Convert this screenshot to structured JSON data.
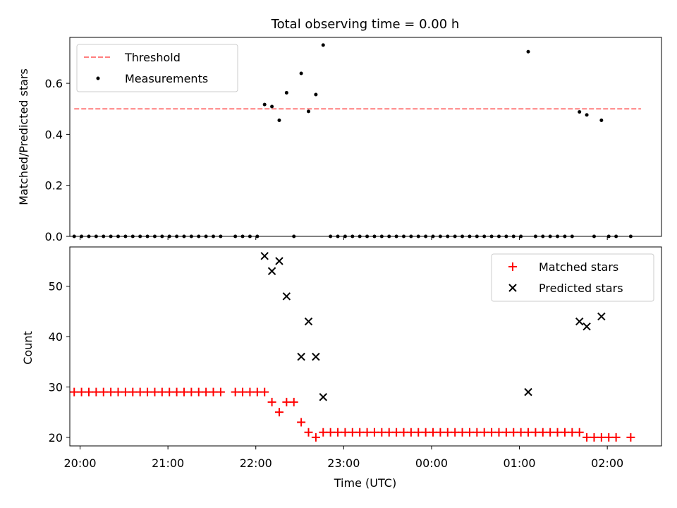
{
  "chart_data": [
    {
      "type": "scatter",
      "title": "Total observing time = 0.00 h",
      "xlabel": "",
      "ylabel": "Matched/Predicted stars",
      "xlim": [
        "19:53",
        "02:37"
      ],
      "ylim": [
        0,
        0.78
      ],
      "yticks": [
        0.0,
        0.2,
        0.4,
        0.6
      ],
      "ytick_labels": [
        "0.0",
        "0.2",
        "0.4",
        "0.6"
      ],
      "legend": "upper-left",
      "series": [
        {
          "name": "Threshold",
          "kind": "dashed-line",
          "color": "#ff7f7f",
          "x": [
            "19:56",
            "02:23"
          ],
          "values": [
            0.5,
            0.5
          ]
        },
        {
          "name": "Measurements",
          "kind": "points",
          "color": "#000000",
          "x": [
            "19:56",
            "20:01",
            "20:06",
            "20:11",
            "20:16",
            "20:21",
            "20:26",
            "20:31",
            "20:36",
            "20:41",
            "20:46",
            "20:51",
            "20:56",
            "21:01",
            "21:06",
            "21:11",
            "21:16",
            "21:21",
            "21:26",
            "21:31",
            "21:36",
            "21:46",
            "21:51",
            "21:56",
            "22:01",
            "22:06",
            "22:11",
            "22:16",
            "22:21",
            "22:26",
            "22:31",
            "22:36",
            "22:41",
            "22:46",
            "22:51",
            "22:56",
            "23:01",
            "23:06",
            "23:11",
            "23:16",
            "23:21",
            "23:26",
            "23:31",
            "23:36",
            "23:41",
            "23:46",
            "23:51",
            "23:56",
            "00:01",
            "00:06",
            "00:11",
            "00:16",
            "00:21",
            "00:26",
            "00:31",
            "00:36",
            "00:41",
            "00:46",
            "00:51",
            "00:56",
            "01:01",
            "01:06",
            "01:11",
            "01:16",
            "01:21",
            "01:26",
            "01:31",
            "01:36",
            "01:41",
            "01:46",
            "01:51",
            "01:56",
            "02:01",
            "02:06",
            "02:16"
          ],
          "values": [
            0,
            0,
            0,
            0,
            0,
            0,
            0,
            0,
            0,
            0,
            0,
            0,
            0,
            0,
            0,
            0,
            0,
            0,
            0,
            0,
            0,
            0,
            0,
            0,
            0,
            0.517,
            0.509,
            0.455,
            0.563,
            0,
            0.639,
            0.49,
            0.556,
            0.75,
            0,
            0,
            0,
            0,
            0,
            0,
            0,
            0,
            0,
            0,
            0,
            0,
            0,
            0,
            0,
            0,
            0,
            0,
            0,
            0,
            0,
            0,
            0,
            0,
            0,
            0,
            0,
            0.724,
            0,
            0,
            0,
            0,
            0,
            0,
            0.488,
            0.476,
            0,
            0.455,
            0,
            0,
            0
          ]
        }
      ]
    },
    {
      "type": "scatter",
      "title": "",
      "xlabel": "Time (UTC)",
      "ylabel": "Count",
      "xlim": [
        "19:53",
        "02:37"
      ],
      "ylim": [
        18.3,
        57.8
      ],
      "xticks": [
        "20:00",
        "21:00",
        "22:00",
        "23:00",
        "00:00",
        "01:00",
        "02:00"
      ],
      "yticks": [
        20,
        30,
        40,
        50
      ],
      "legend": "upper-right",
      "series": [
        {
          "name": "Matched stars",
          "marker": "plus",
          "color": "#ff0000",
          "x": [
            "19:56",
            "20:01",
            "20:06",
            "20:11",
            "20:16",
            "20:21",
            "20:26",
            "20:31",
            "20:36",
            "20:41",
            "20:46",
            "20:51",
            "20:56",
            "21:01",
            "21:06",
            "21:11",
            "21:16",
            "21:21",
            "21:26",
            "21:31",
            "21:36",
            "21:46",
            "21:51",
            "21:56",
            "22:01",
            "22:06",
            "22:11",
            "22:16",
            "22:21",
            "22:26",
            "22:31",
            "22:36",
            "22:41",
            "22:46",
            "22:51",
            "22:56",
            "23:01",
            "23:06",
            "23:11",
            "23:16",
            "23:21",
            "23:26",
            "23:31",
            "23:36",
            "23:41",
            "23:46",
            "23:51",
            "23:56",
            "00:01",
            "00:06",
            "00:11",
            "00:16",
            "00:21",
            "00:26",
            "00:31",
            "00:36",
            "00:41",
            "00:46",
            "00:51",
            "00:56",
            "01:01",
            "01:06",
            "01:11",
            "01:16",
            "01:21",
            "01:26",
            "01:31",
            "01:36",
            "01:41",
            "01:46",
            "01:51",
            "01:56",
            "02:01",
            "02:06",
            "02:16"
          ],
          "values": [
            29,
            29,
            29,
            29,
            29,
            29,
            29,
            29,
            29,
            29,
            29,
            29,
            29,
            29,
            29,
            29,
            29,
            29,
            29,
            29,
            29,
            29,
            29,
            29,
            29,
            29,
            27,
            25,
            27,
            27,
            23,
            21,
            20,
            21,
            21,
            21,
            21,
            21,
            21,
            21,
            21,
            21,
            21,
            21,
            21,
            21,
            21,
            21,
            21,
            21,
            21,
            21,
            21,
            21,
            21,
            21,
            21,
            21,
            21,
            21,
            21,
            21,
            21,
            21,
            21,
            21,
            21,
            21,
            21,
            20,
            20,
            20,
            20,
            20,
            20
          ]
        },
        {
          "name": "Predicted stars",
          "marker": "x",
          "color": "#000000",
          "x": [
            "22:06",
            "22:11",
            "22:16",
            "22:21",
            "22:31",
            "22:36",
            "22:41",
            "22:46",
            "01:06",
            "01:41",
            "01:46",
            "01:56"
          ],
          "values": [
            56,
            53,
            55,
            48,
            36,
            43,
            36,
            28,
            29,
            43,
            42,
            44
          ]
        }
      ]
    }
  ]
}
